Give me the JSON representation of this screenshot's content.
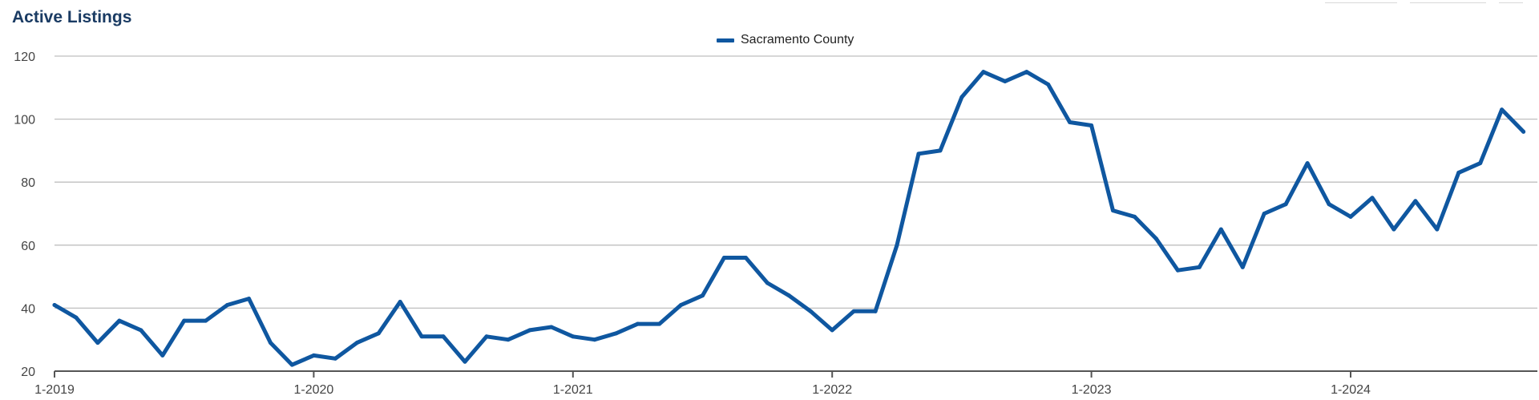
{
  "chart_data": {
    "type": "line",
    "title": "Active Listings",
    "xlabel": "",
    "ylabel": "",
    "ylim": [
      20,
      120
    ],
    "yticks": [
      20,
      40,
      60,
      80,
      100,
      120
    ],
    "xticks": [
      "1-2019",
      "1-2020",
      "1-2021",
      "1-2022",
      "1-2023",
      "1-2024"
    ],
    "grid": true,
    "legend_position": "top-center",
    "series": [
      {
        "name": "Sacramento County",
        "color": "#0f57a0",
        "x": [
          "1-2019",
          "2-2019",
          "3-2019",
          "4-2019",
          "5-2019",
          "6-2019",
          "7-2019",
          "8-2019",
          "9-2019",
          "10-2019",
          "11-2019",
          "12-2019",
          "1-2020",
          "2-2020",
          "3-2020",
          "4-2020",
          "5-2020",
          "6-2020",
          "7-2020",
          "8-2020",
          "9-2020",
          "10-2020",
          "11-2020",
          "12-2020",
          "1-2021",
          "2-2021",
          "3-2021",
          "4-2021",
          "5-2021",
          "6-2021",
          "7-2021",
          "8-2021",
          "9-2021",
          "10-2021",
          "11-2021",
          "12-2021",
          "1-2022",
          "2-2022",
          "3-2022",
          "4-2022",
          "5-2022",
          "6-2022",
          "7-2022",
          "8-2022",
          "9-2022",
          "10-2022",
          "11-2022",
          "12-2022",
          "1-2023",
          "2-2023",
          "3-2023",
          "4-2023",
          "5-2023",
          "6-2023",
          "7-2023",
          "8-2023",
          "9-2023",
          "10-2023",
          "11-2023",
          "12-2023",
          "1-2024",
          "2-2024",
          "3-2024",
          "4-2024",
          "5-2024",
          "6-2024",
          "7-2024",
          "8-2024",
          "9-2024"
        ],
        "values": [
          41,
          37,
          29,
          36,
          33,
          25,
          36,
          36,
          41,
          43,
          29,
          22,
          25,
          24,
          29,
          32,
          42,
          31,
          31,
          23,
          31,
          30,
          33,
          34,
          31,
          30,
          32,
          35,
          35,
          41,
          44,
          56,
          56,
          48,
          44,
          39,
          33,
          39,
          39,
          60,
          89,
          90,
          107,
          115,
          112,
          115,
          111,
          99,
          98,
          71,
          69,
          62,
          52,
          53,
          65,
          53,
          70,
          73,
          86,
          73,
          69,
          75,
          65,
          74,
          65,
          83,
          86,
          103,
          96
        ]
      }
    ]
  },
  "colors": {
    "axis": "#555555",
    "grid": "#bfbfbf",
    "title": "#1a3b63"
  }
}
